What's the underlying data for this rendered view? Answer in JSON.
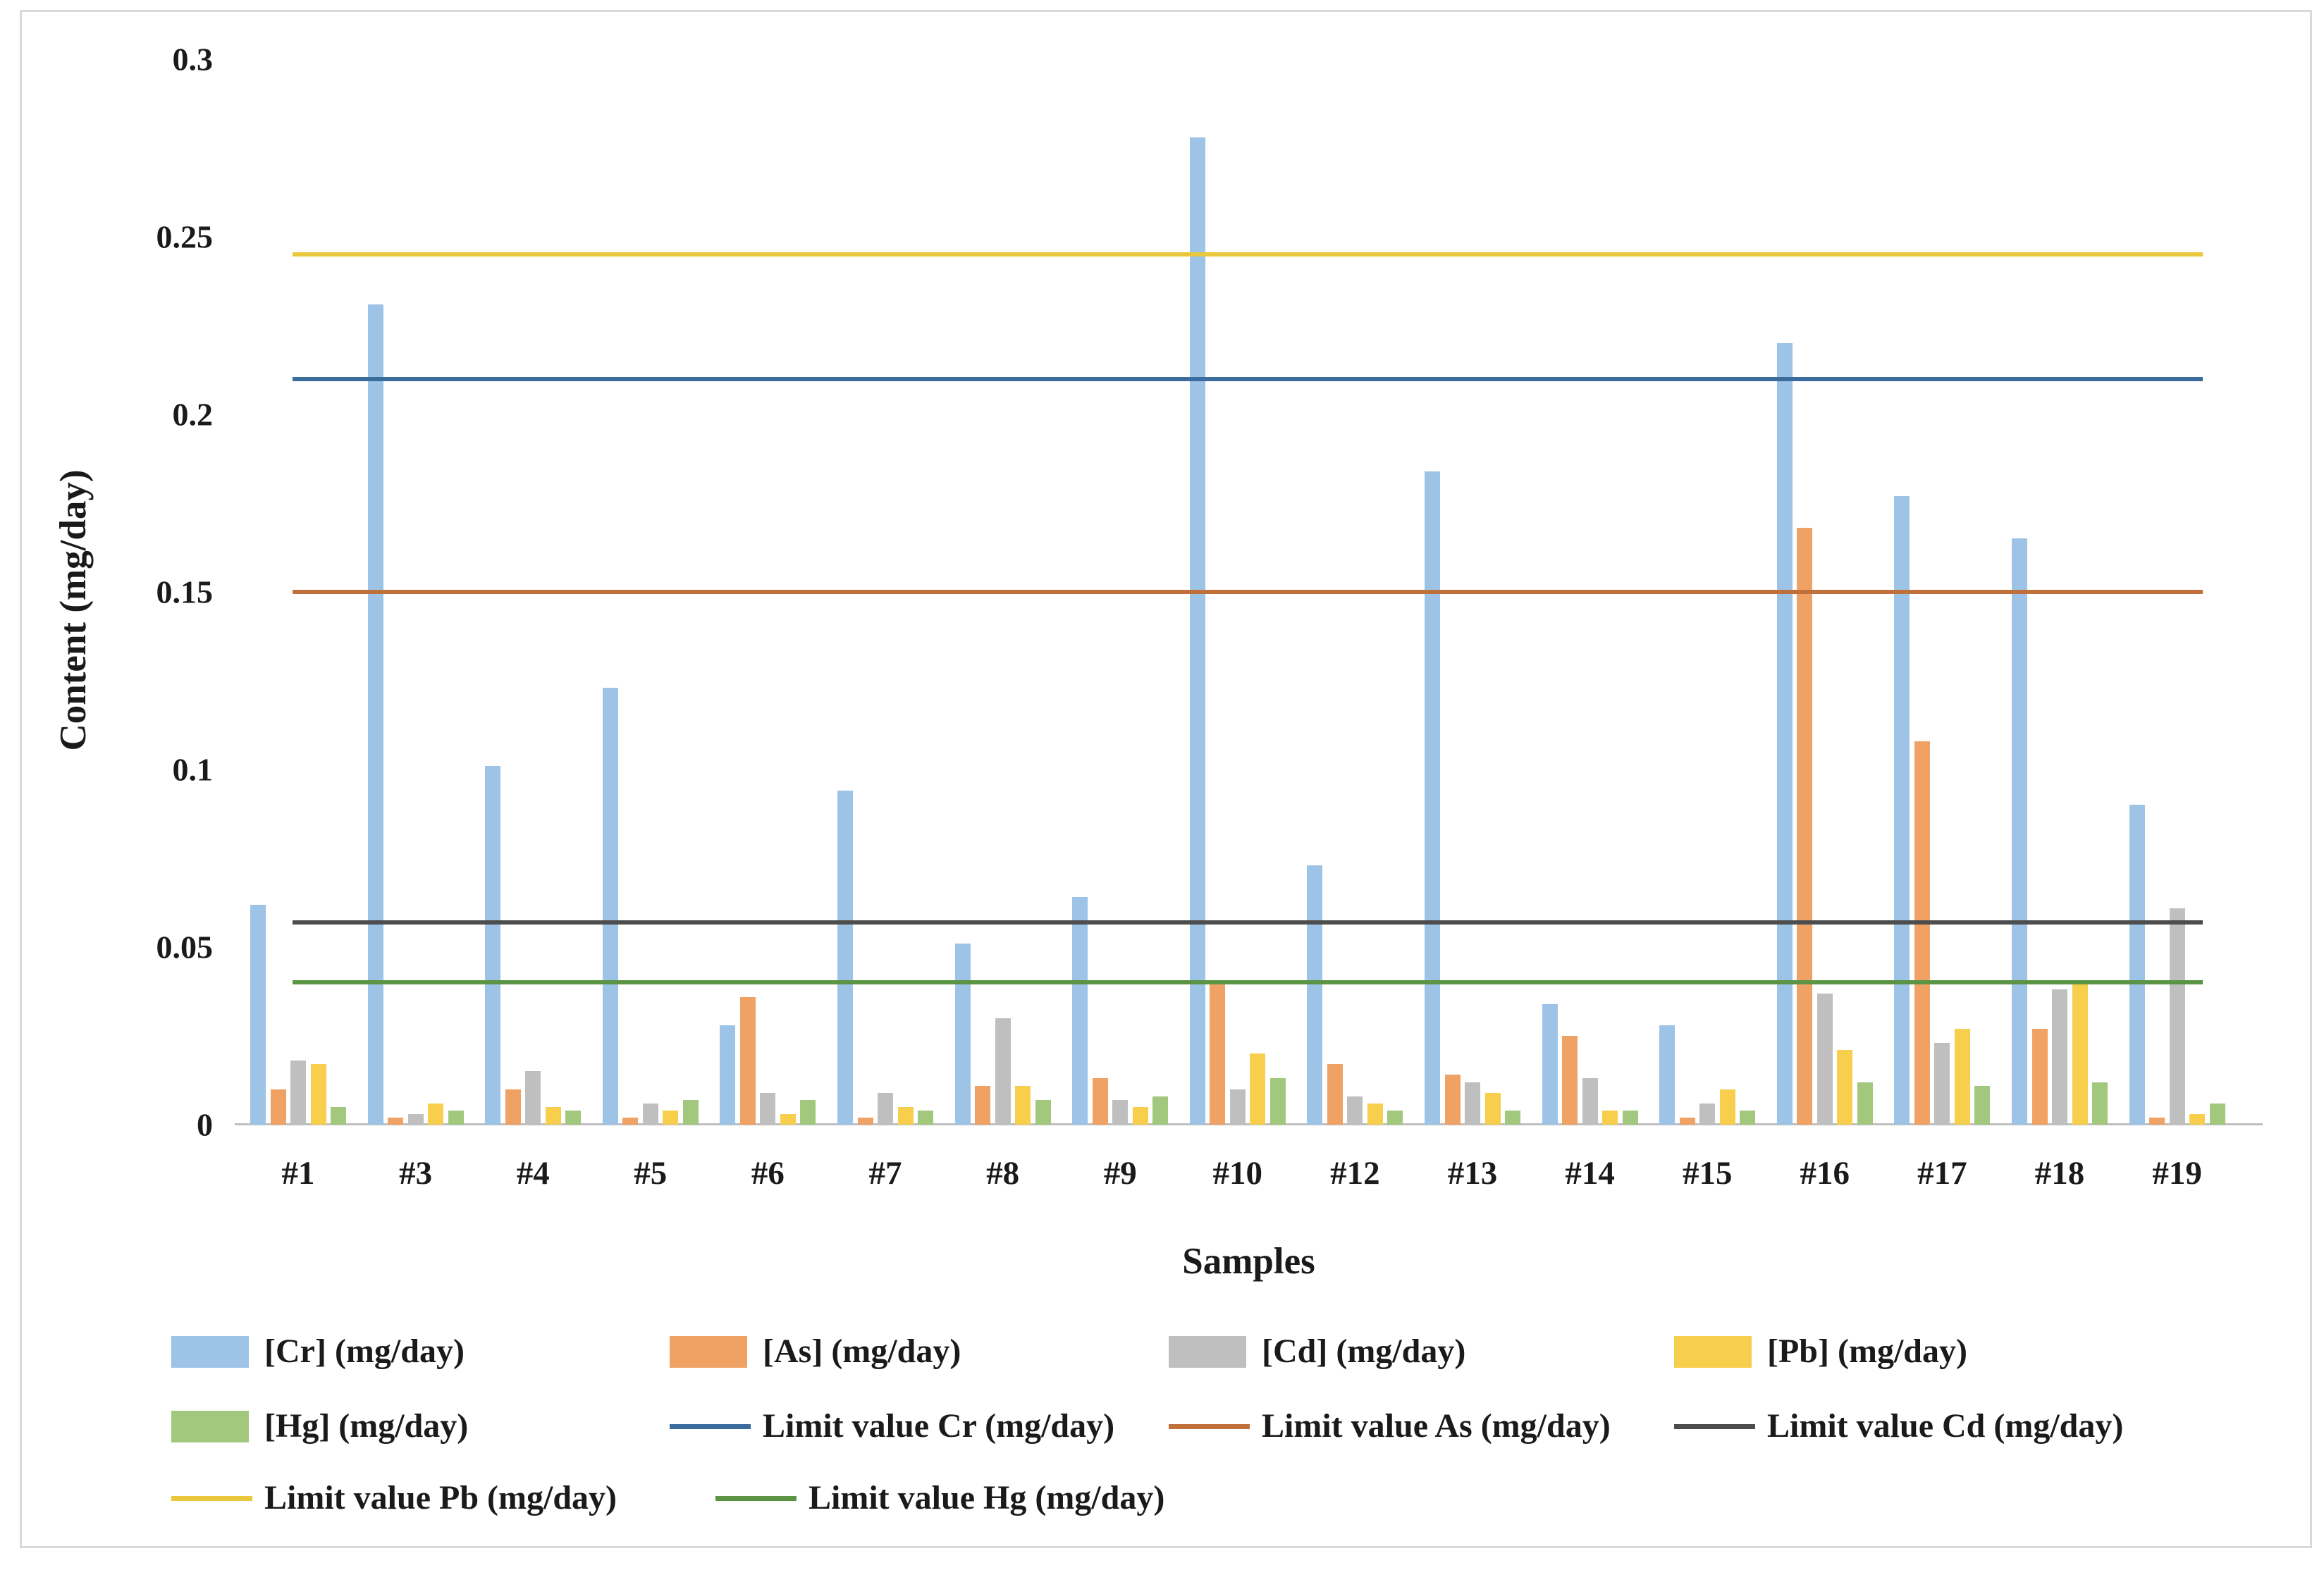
{
  "figure": {
    "background": "#ffffff",
    "border_color": "#d9d9d9"
  },
  "chart_data": {
    "type": "bar",
    "title": "",
    "xlabel": "Samples",
    "ylabel": "Content (mg/day)",
    "ylim": [
      0,
      0.3
    ],
    "yticks": [
      0,
      0.05,
      0.1,
      0.15,
      0.2,
      0.25,
      0.3
    ],
    "ytick_labels": [
      "0",
      "0.05",
      "0.1",
      "0.15",
      "0.2",
      "0.25",
      "0.3"
    ],
    "grid": "off",
    "legend_position": "bottom",
    "axis_line_color": "#bfbfbf",
    "categories": [
      "#1",
      "#3",
      "#4",
      "#5",
      "#6",
      "#7",
      "#8",
      "#9",
      "#10",
      "#12",
      "#13",
      "#14",
      "#15",
      "#16",
      "#17",
      "#18",
      "#19"
    ],
    "series": [
      {
        "name": "[Cr] (mg/day)",
        "color": "#9DC3E6",
        "values": [
          0.062,
          0.231,
          0.101,
          0.123,
          0.028,
          0.094,
          0.051,
          0.064,
          0.278,
          0.073,
          0.184,
          0.034,
          0.028,
          0.22,
          0.177,
          0.165,
          0.09
        ]
      },
      {
        "name": "[As] (mg/day)",
        "color": "#F0A264",
        "values": [
          0.01,
          0.002,
          0.01,
          0.002,
          0.036,
          0.002,
          0.011,
          0.013,
          0.04,
          0.017,
          0.014,
          0.025,
          0.002,
          0.168,
          0.108,
          0.027,
          0.002
        ]
      },
      {
        "name": "[Cd] (mg/day)",
        "color": "#BFBFBF",
        "values": [
          0.018,
          0.003,
          0.015,
          0.006,
          0.009,
          0.009,
          0.03,
          0.007,
          0.01,
          0.008,
          0.012,
          0.013,
          0.006,
          0.037,
          0.023,
          0.038,
          0.061
        ]
      },
      {
        "name": "[Pb] (mg/day)",
        "color": "#F8CE4D",
        "values": [
          0.017,
          0.006,
          0.005,
          0.004,
          0.003,
          0.005,
          0.011,
          0.005,
          0.02,
          0.006,
          0.009,
          0.004,
          0.01,
          0.021,
          0.027,
          0.04,
          0.003
        ]
      },
      {
        "name": "[Hg] (mg/day)",
        "color": "#A2C87E",
        "values": [
          0.005,
          0.004,
          0.004,
          0.007,
          0.007,
          0.004,
          0.007,
          0.008,
          0.013,
          0.004,
          0.004,
          0.004,
          0.004,
          0.012,
          0.011,
          0.012,
          0.006
        ]
      }
    ],
    "limit_lines": [
      {
        "name": "Limit value Cr (mg/day)",
        "value": 0.21,
        "color": "#3A6D9E"
      },
      {
        "name": "Limit value As (mg/day)",
        "value": 0.15,
        "color": "#C0703A"
      },
      {
        "name": "Limit value Cd (mg/day)",
        "value": 0.057,
        "color": "#4D4D4D"
      },
      {
        "name": "Limit value Pb (mg/day)",
        "value": 0.245,
        "color": "#E9C83B"
      },
      {
        "name": "Limit value Hg (mg/day)",
        "value": 0.04,
        "color": "#5C9446"
      }
    ]
  },
  "legend": {
    "rows": [
      [
        {
          "type": "swatch",
          "label": "[Cr] (mg/day)",
          "color": "#9DC3E6"
        },
        {
          "type": "swatch",
          "label": "[As] (mg/day)",
          "color": "#F0A264"
        },
        {
          "type": "swatch",
          "label": "[Cd] (mg/day)",
          "color": "#BFBFBF"
        },
        {
          "type": "swatch",
          "label": "[Pb] (mg/day)",
          "color": "#F8CE4D"
        }
      ],
      [
        {
          "type": "swatch",
          "label": "[Hg] (mg/day)",
          "color": "#A2C87E"
        },
        {
          "type": "line",
          "label": "Limit value Cr (mg/day)",
          "color": "#3A6D9E"
        },
        {
          "type": "line",
          "label": "Limit value As (mg/day)",
          "color": "#C0703A"
        },
        {
          "type": "line",
          "label": "Limit value Cd (mg/day)",
          "color": "#4D4D4D"
        }
      ],
      [
        {
          "type": "line",
          "label": "Limit value Pb (mg/day)",
          "color": "#E9C83B"
        },
        {
          "type": "line",
          "label": "Limit value Hg (mg/day)",
          "color": "#5C9446"
        }
      ]
    ]
  }
}
